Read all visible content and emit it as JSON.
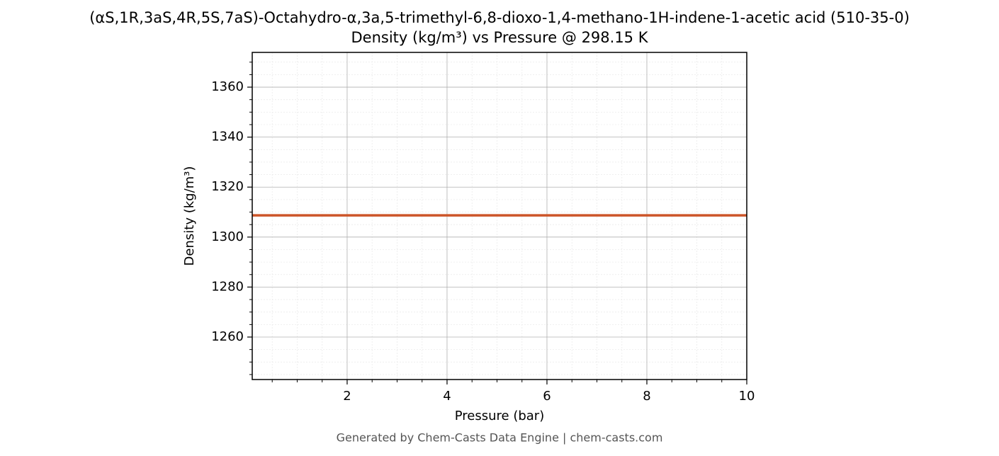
{
  "chart_data": {
    "type": "line",
    "title": "(αS,1R,3aS,4R,5S,7aS)-Octahydro-α,3a,5-trimethyl-6,8-dioxo-1,4-methano-1H-indene-1-acetic acid (510-35-0)",
    "subtitle": "Density (kg/m³) vs Pressure @ 298.15 K",
    "x_label": "Pressure (bar)",
    "y_label": "Density (kg/m³)",
    "footer": "Generated by Chem-Casts Data Engine | chem-casts.com",
    "x": [
      0.1,
      2,
      4,
      6,
      8,
      10
    ],
    "series": [
      {
        "name": "Density",
        "color": "#cc5529",
        "values": [
          1308.7,
          1308.7,
          1308.7,
          1308.7,
          1308.7,
          1308.7
        ]
      }
    ],
    "xlim": [
      0.1,
      10
    ],
    "ylim": [
      1243,
      1373.9
    ],
    "xticks": [
      2,
      4,
      6,
      8,
      10
    ],
    "yticks": [
      1260,
      1280,
      1300,
      1320,
      1340,
      1360
    ],
    "xminorticks": [
      0.5,
      1,
      1.5,
      2.5,
      3,
      3.5,
      4.5,
      5,
      5.5,
      6.5,
      7,
      7.5,
      8.5,
      9,
      9.5
    ],
    "yminorticks": [
      1245,
      1250,
      1255,
      1265,
      1270,
      1275,
      1285,
      1290,
      1295,
      1305,
      1310,
      1315,
      1325,
      1330,
      1335,
      1345,
      1350,
      1355,
      1365,
      1370
    ],
    "grid": true
  }
}
